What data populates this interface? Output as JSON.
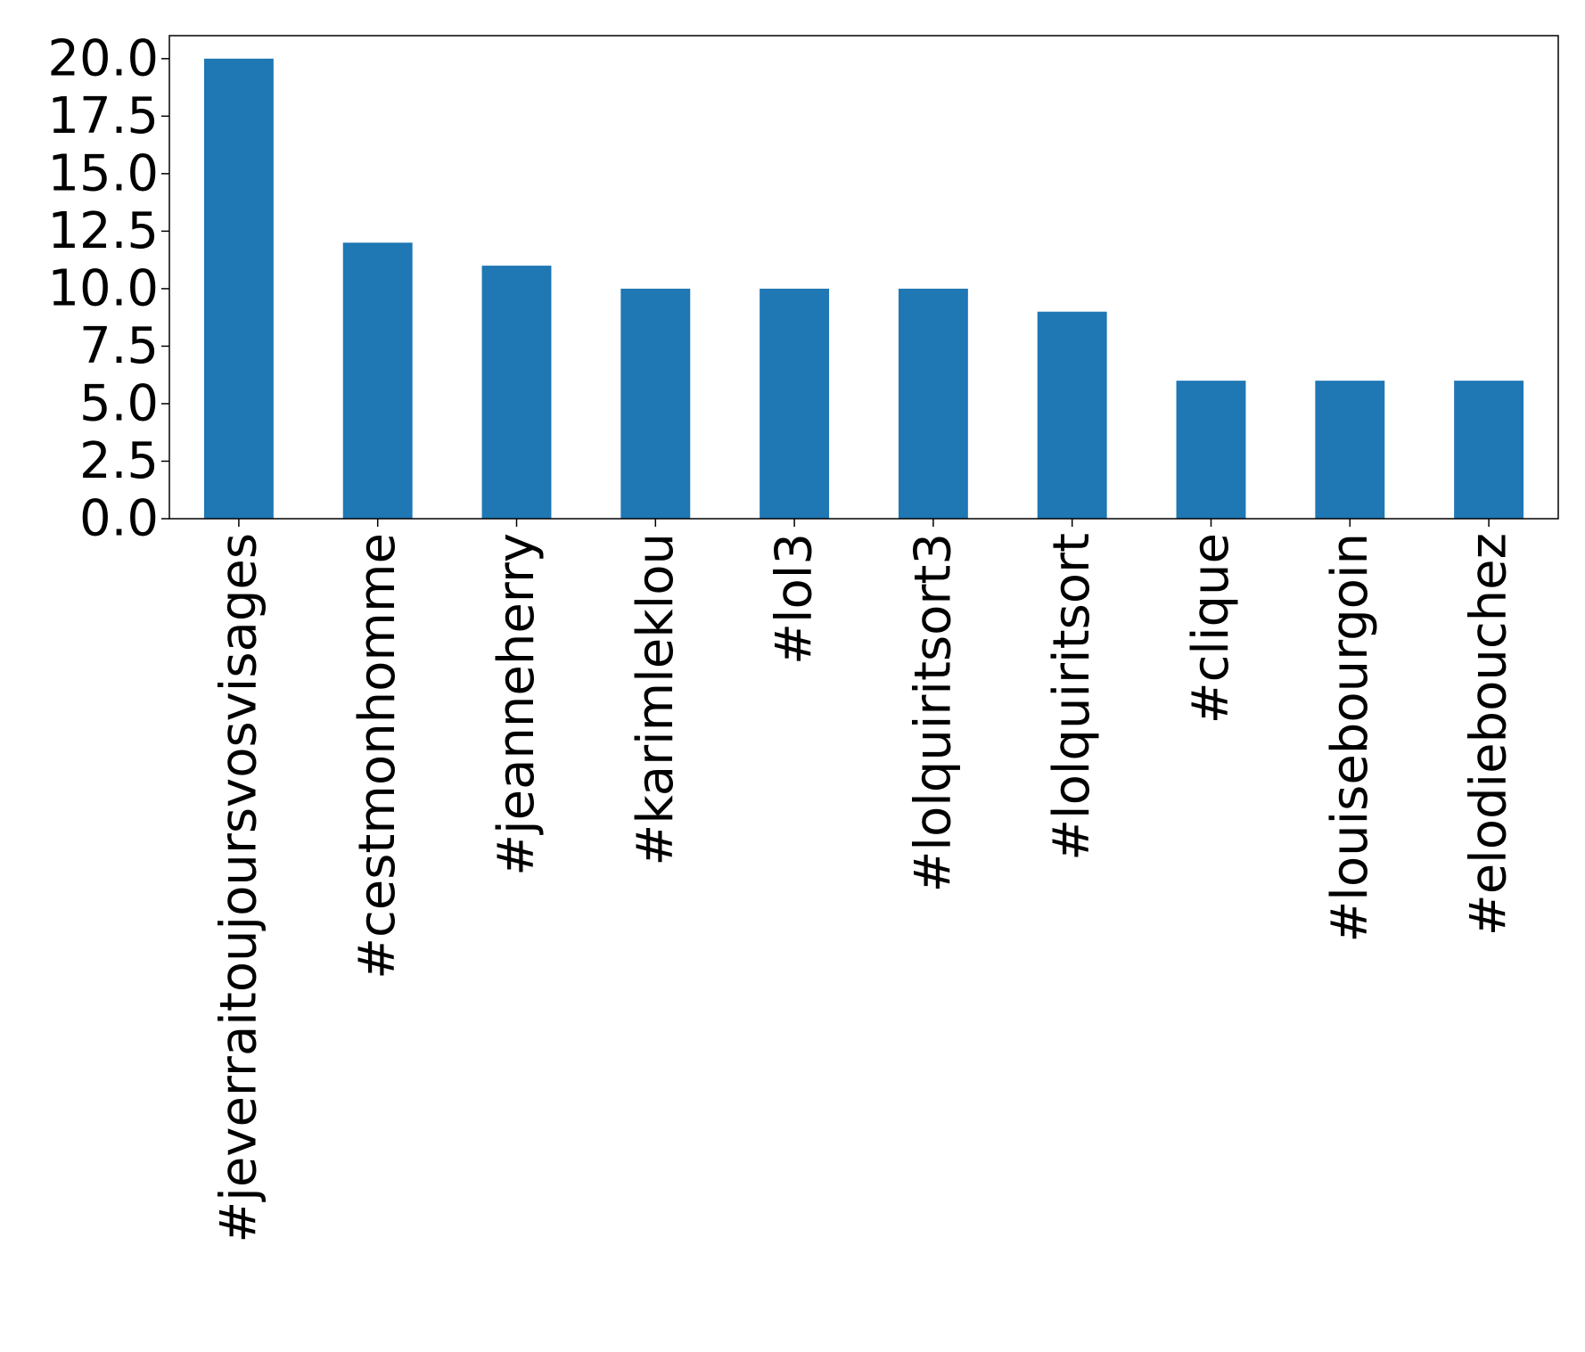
{
  "chart_data": {
    "type": "bar",
    "title": "",
    "xlabel": "",
    "ylabel": "",
    "categories": [
      "#jeverraitoujoursvosvisages",
      "#cestmonhomme",
      "#jeanneherry",
      "#karimleklou",
      "#lol3",
      "#lolquiritsort3",
      "#lolquiritsort",
      "#clique",
      "#louisebourgoin",
      "#elodiebouchez"
    ],
    "values": [
      20,
      12,
      11,
      10,
      10,
      10,
      9,
      6,
      6,
      6
    ],
    "ylim": [
      0,
      21
    ],
    "yticks": [
      "0.0",
      "2.5",
      "5.0",
      "7.5",
      "10.0",
      "12.5",
      "15.0",
      "17.5",
      "20.0"
    ],
    "bar_color": "#1f77b4",
    "grid": false,
    "legend": "none"
  }
}
